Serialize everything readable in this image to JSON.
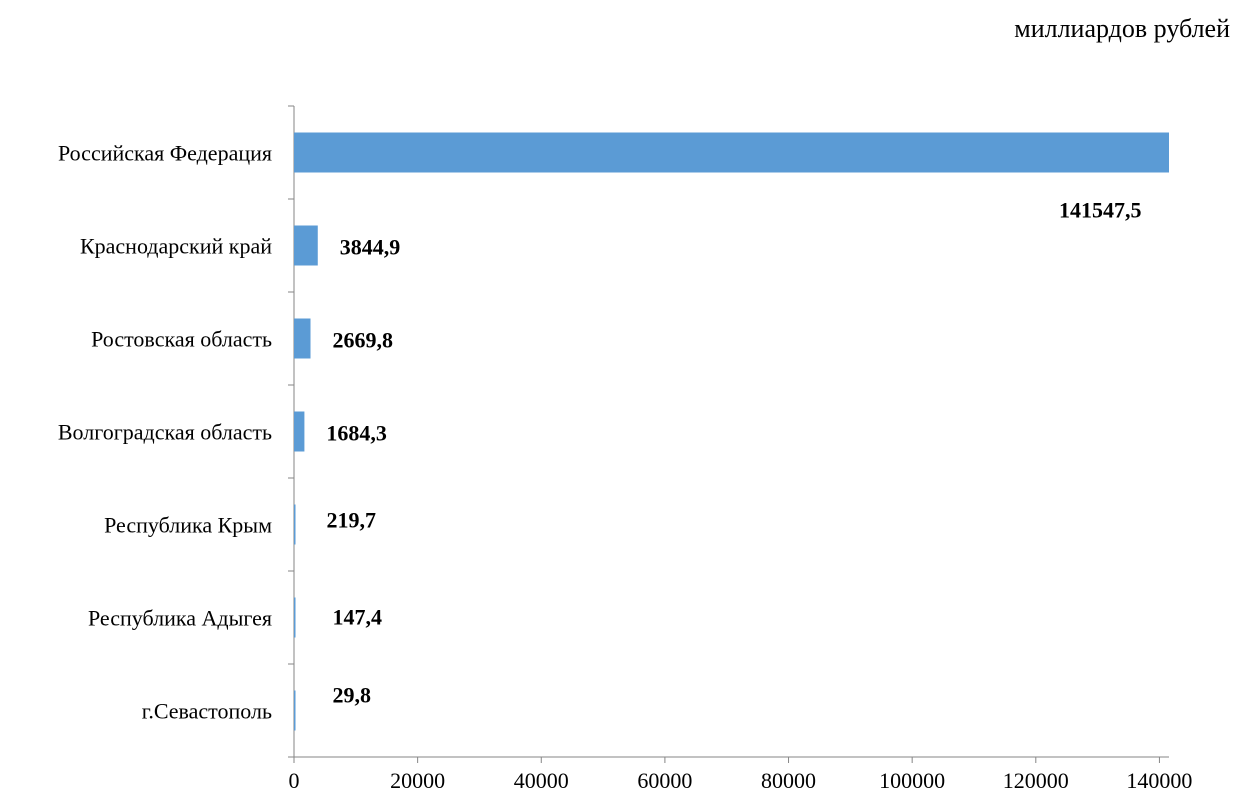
{
  "unit_label": "миллиардов рублей",
  "colors": {
    "bar": "#5b9bd5",
    "axis": "#868686"
  },
  "chart_data": {
    "type": "bar",
    "orientation": "horizontal",
    "title": "",
    "xlabel": "",
    "ylabel": "",
    "xlim": [
      0,
      141547.5
    ],
    "xticks": [
      0,
      20000,
      40000,
      60000,
      80000,
      100000,
      120000,
      140000
    ],
    "grid": false,
    "categories": [
      "Российская Федерация",
      "Краснодарский край",
      "Ростовская область",
      "Волгоградская область",
      "Республика Крым",
      "Республика Адыгея",
      "г.Севастополь"
    ],
    "values": [
      141547.5,
      3844.9,
      2669.8,
      1684.3,
      219.7,
      147.4,
      29.8
    ],
    "value_labels": [
      "141547,5",
      "3844,9",
      "2669,8",
      "1684,3",
      "219,7",
      "147,4",
      "29,8"
    ]
  }
}
